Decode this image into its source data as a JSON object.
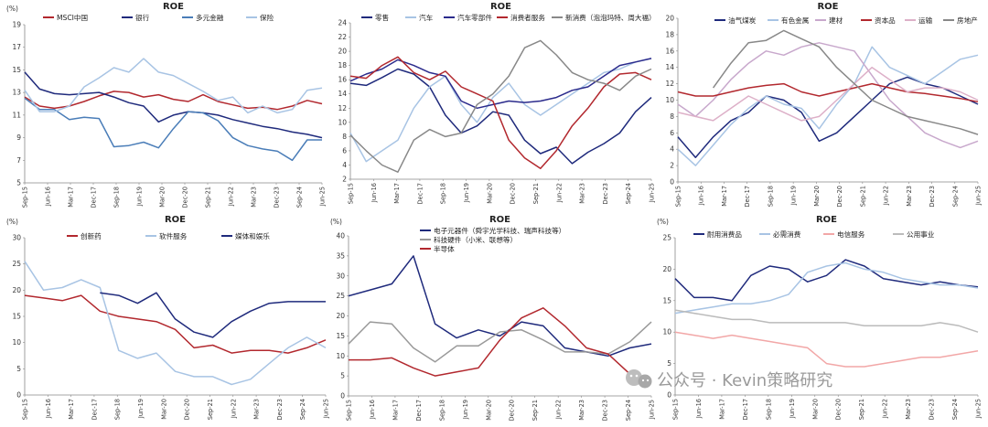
{
  "x_ticks": [
    "Sep-15",
    "Jun-16",
    "Mar-17",
    "Dec-17",
    "Sep-18",
    "Jun-19",
    "Mar-20",
    "Dec-20",
    "Sep-21",
    "Jun-22",
    "Mar-23",
    "Dec-23",
    "Sep-24",
    "Jun-25"
  ],
  "watermark": {
    "text": "公众号 · Kevin策略研究"
  },
  "chart_data": [
    {
      "type": "line",
      "title": "ROE",
      "unit": "(%)",
      "ylim": [
        5,
        19
      ],
      "yticks": [
        5,
        7,
        9,
        11,
        13,
        15,
        17,
        19
      ],
      "legend_position": "top",
      "series": [
        {
          "name": "MSCI中国",
          "color": "#B2282E",
          "values": [
            12.6,
            11.8,
            11.6,
            11.8,
            12.2,
            12.7,
            13.1,
            13.0,
            12.6,
            12.8,
            12.4,
            12.2,
            12.8,
            12.2,
            11.9,
            11.6,
            11.7,
            11.5,
            11.8,
            12.3,
            12.0
          ]
        },
        {
          "name": "银行",
          "color": "#1F2A7C",
          "values": [
            14.8,
            13.3,
            12.9,
            12.8,
            12.9,
            13.0,
            12.6,
            12.1,
            11.8,
            10.4,
            11.0,
            11.3,
            11.2,
            11.0,
            10.6,
            10.3,
            10.0,
            9.8,
            9.5,
            9.3,
            9.0
          ]
        },
        {
          "name": "多元金融",
          "color": "#4A7DB8",
          "values": [
            12.5,
            11.5,
            11.5,
            10.6,
            10.8,
            10.7,
            8.2,
            8.3,
            8.6,
            8.1,
            9.8,
            11.3,
            11.2,
            10.5,
            9.0,
            8.3,
            8.0,
            7.8,
            7.0,
            8.8,
            8.8
          ]
        },
        {
          "name": "保险",
          "color": "#A8C4E4",
          "values": [
            13.2,
            11.3,
            11.3,
            11.8,
            13.5,
            14.3,
            15.2,
            14.8,
            16.0,
            14.8,
            14.5,
            13.8,
            13.1,
            12.3,
            12.6,
            11.2,
            11.8,
            11.2,
            11.5,
            13.2,
            13.4
          ]
        }
      ]
    },
    {
      "type": "line",
      "title": "ROE",
      "unit": "",
      "ylim": [
        2,
        24
      ],
      "yticks": [
        2,
        4,
        6,
        8,
        10,
        12,
        14,
        16,
        18,
        20,
        22,
        24
      ],
      "legend_position": "top",
      "series": [
        {
          "name": "零售",
          "color": "#1F2A7C",
          "values": [
            15.5,
            15.2,
            16.3,
            17.5,
            16.8,
            15.0,
            11.0,
            8.5,
            9.5,
            11.5,
            11.0,
            7.5,
            5.6,
            6.5,
            4.2,
            5.8,
            7.0,
            8.5,
            11.5,
            13.5
          ]
        },
        {
          "name": "汽车",
          "color": "#A8C4E4",
          "values": [
            8.5,
            4.5,
            6.0,
            7.5,
            12.0,
            15.0,
            16.5,
            12.5,
            10.0,
            13.5,
            15.5,
            12.5,
            11.0,
            12.5,
            14.0,
            15.5,
            17.0,
            17.5,
            18.5,
            19.0
          ]
        },
        {
          "name": "汽车零部件",
          "color": "#2B2B8C",
          "values": [
            15.8,
            16.8,
            17.5,
            18.8,
            18.0,
            17.0,
            16.5,
            13.0,
            12.0,
            12.5,
            13.0,
            12.8,
            13.0,
            13.5,
            14.5,
            15.0,
            16.5,
            18.0,
            18.5,
            19.0
          ]
        },
        {
          "name": "消费者服务",
          "color": "#B2282E",
          "values": [
            16.5,
            16.2,
            18.0,
            19.2,
            17.0,
            16.0,
            17.2,
            15.0,
            14.0,
            13.0,
            7.5,
            5.0,
            3.5,
            6.0,
            9.5,
            12.0,
            15.0,
            16.8,
            17.0,
            16.0
          ]
        },
        {
          "name": "新消费（泡泡玛特、周大福）",
          "color": "#888888",
          "values": [
            8.2,
            6.0,
            4.0,
            3.0,
            7.5,
            9.0,
            8.0,
            8.5,
            12.5,
            14.0,
            16.5,
            20.5,
            21.5,
            19.5,
            17.0,
            16.0,
            15.5,
            14.5,
            16.5,
            17.5
          ]
        }
      ]
    },
    {
      "type": "line",
      "title": "ROE",
      "unit": "",
      "ylim": [
        0,
        20
      ],
      "yticks": [
        0,
        2,
        4,
        6,
        8,
        10,
        12,
        14,
        16,
        18,
        20
      ],
      "legend_position": "top",
      "series": [
        {
          "name": "油气煤炭",
          "color": "#1F2A7C",
          "values": [
            5.5,
            3.0,
            5.5,
            7.5,
            8.5,
            10.5,
            10.0,
            8.5,
            5.0,
            6.0,
            8.0,
            10.0,
            12.0,
            12.8,
            12.0,
            11.5,
            10.5,
            9.5
          ]
        },
        {
          "name": "有色金属",
          "color": "#A8C4E4",
          "values": [
            4.0,
            2.0,
            4.5,
            7.0,
            9.0,
            10.5,
            9.5,
            9.0,
            6.5,
            9.5,
            12.0,
            16.5,
            14.0,
            13.0,
            12.0,
            13.5,
            15.0,
            15.5
          ]
        },
        {
          "name": "建材",
          "color": "#C8A8CC",
          "values": [
            9.5,
            8.0,
            10.0,
            12.5,
            14.5,
            16.0,
            15.5,
            16.5,
            17.0,
            16.5,
            16.0,
            13.0,
            10.0,
            8.0,
            6.0,
            5.0,
            4.2,
            5.0
          ]
        },
        {
          "name": "资本品",
          "color": "#B2282E",
          "values": [
            11.0,
            10.5,
            10.5,
            11.0,
            11.5,
            11.8,
            12.0,
            11.0,
            10.5,
            11.0,
            11.5,
            12.0,
            11.5,
            11.0,
            10.8,
            10.5,
            10.2,
            9.8
          ]
        },
        {
          "name": "运输",
          "color": "#DDB0C8",
          "values": [
            8.5,
            8.0,
            7.5,
            9.0,
            10.5,
            9.5,
            8.5,
            7.5,
            8.0,
            10.0,
            12.0,
            14.0,
            12.5,
            11.0,
            11.5,
            11.5,
            11.0,
            10.0
          ]
        },
        {
          "name": "房地产",
          "color": "#888888",
          "values": [
            null,
            null,
            11.5,
            14.5,
            17.0,
            17.3,
            18.5,
            17.5,
            16.5,
            14.0,
            12.0,
            10.0,
            9.0,
            8.0,
            7.5,
            7.0,
            6.5,
            5.8
          ]
        }
      ]
    },
    {
      "type": "line",
      "title": "ROE",
      "unit": "(%)",
      "ylim": [
        0,
        30
      ],
      "yticks": [
        0,
        5,
        10,
        15,
        20,
        25,
        30
      ],
      "legend_position": "top",
      "series": [
        {
          "name": "创新药",
          "color": "#B2282E",
          "values": [
            19.0,
            18.5,
            18.0,
            19.0,
            16.0,
            15.0,
            14.5,
            14.0,
            12.5,
            9.0,
            9.5,
            8.0,
            8.5,
            8.5,
            8.0,
            9.0,
            10.5
          ]
        },
        {
          "name": "软件服务",
          "color": "#A8C4E4",
          "values": [
            25.5,
            20.0,
            20.5,
            22.0,
            20.5,
            8.5,
            7.0,
            8.0,
            4.5,
            3.5,
            3.5,
            2.0,
            3.0,
            6.0,
            9.0,
            11.0,
            9.0
          ]
        },
        {
          "name": "媒体和娱乐",
          "color": "#1F2A7C",
          "values": [
            null,
            null,
            null,
            null,
            19.5,
            19.0,
            17.5,
            19.5,
            14.5,
            12.0,
            11.0,
            14.0,
            16.0,
            17.5,
            17.8,
            17.8,
            17.8
          ]
        }
      ]
    },
    {
      "type": "line",
      "title": "ROE",
      "unit": "(%)",
      "ylim": [
        0,
        40
      ],
      "yticks": [
        0,
        5,
        10,
        15,
        20,
        25,
        30,
        35,
        40
      ],
      "legend_position": "top-left",
      "series": [
        {
          "name": "电子元器件（舜宇光学科技、瑞声科技等）",
          "color": "#1F2A7C",
          "values": [
            25.0,
            26.5,
            28.0,
            35.0,
            18.0,
            14.5,
            16.5,
            15.0,
            18.5,
            17.5,
            12.0,
            11.0,
            10.0,
            12.0,
            13.0
          ]
        },
        {
          "name": "科技硬件（小米、联想等）",
          "color": "#999999",
          "values": [
            13.0,
            18.5,
            18.0,
            12.0,
            8.5,
            12.5,
            12.5,
            16.0,
            16.5,
            14.0,
            11.0,
            11.0,
            10.5,
            13.5,
            18.5
          ]
        },
        {
          "name": "半导体",
          "color": "#B2282E",
          "values": [
            9.0,
            9.0,
            9.5,
            7.0,
            5.0,
            6.0,
            7.0,
            14.0,
            19.5,
            22.0,
            17.5,
            12.0,
            10.5,
            5.5,
            4.0
          ]
        }
      ]
    },
    {
      "type": "line",
      "title": "ROE",
      "unit": "(%)",
      "ylim": [
        0,
        25
      ],
      "yticks": [
        0,
        5,
        10,
        15,
        20,
        25
      ],
      "legend_position": "top",
      "series": [
        {
          "name": "耐用消费品",
          "color": "#1F2A7C",
          "values": [
            18.5,
            15.5,
            15.5,
            15.0,
            19.0,
            20.5,
            20.0,
            18.0,
            19.0,
            21.5,
            20.5,
            18.5,
            18.0,
            17.5,
            18.0,
            17.5,
            17.2
          ]
        },
        {
          "name": "必需消费",
          "color": "#A8C4E4",
          "values": [
            13.0,
            13.5,
            14.0,
            14.5,
            14.5,
            15.0,
            16.0,
            19.5,
            20.5,
            21.0,
            20.0,
            19.5,
            18.5,
            18.0,
            17.5,
            17.5,
            17.0
          ]
        },
        {
          "name": "电信服务",
          "color": "#F2A7A7",
          "values": [
            10.0,
            9.5,
            9.0,
            9.5,
            9.0,
            8.5,
            8.0,
            7.5,
            5.0,
            4.5,
            4.5,
            5.0,
            5.5,
            6.0,
            6.0,
            6.5,
            7.0
          ]
        },
        {
          "name": "公用事业",
          "color": "#BBBBBB",
          "values": [
            13.5,
            13.0,
            12.5,
            12.0,
            12.0,
            11.5,
            11.5,
            11.5,
            11.5,
            11.5,
            11.0,
            11.0,
            11.0,
            11.0,
            11.5,
            11.0,
            10.0
          ]
        }
      ]
    }
  ]
}
